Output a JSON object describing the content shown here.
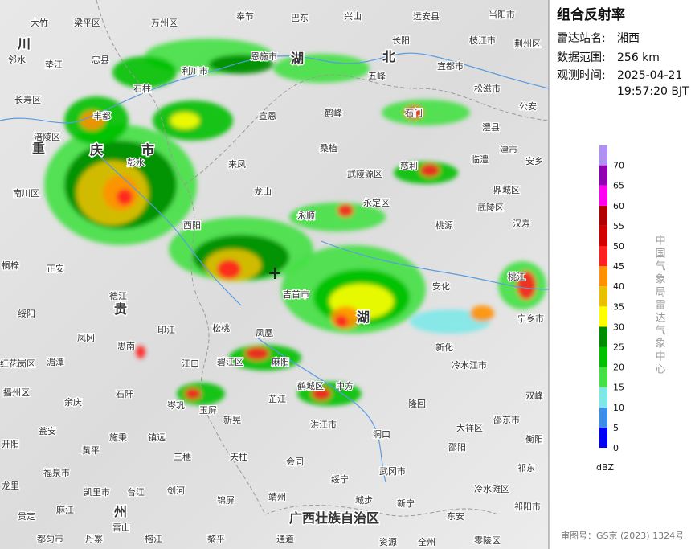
{
  "panel": {
    "title": "组合反射率",
    "station_label": "雷达站名:",
    "station": "湘西",
    "range_label": "数据范围:",
    "range": "256 km",
    "time_label": "观测时间:",
    "date": "2025-04-21",
    "time": "19:57:20 BJT"
  },
  "legend": {
    "ticks": [
      0,
      5,
      10,
      15,
      20,
      25,
      30,
      35,
      40,
      45,
      50,
      55,
      60,
      65,
      70
    ],
    "colors": [
      "#0000f6",
      "#3c8fe8",
      "#7ee8e8",
      "#44e044",
      "#00c000",
      "#008c00",
      "#ffff00",
      "#e8c000",
      "#ff9000",
      "#ff2020",
      "#d00000",
      "#b00000",
      "#ff00f0",
      "#9000b0",
      "#b090f0"
    ],
    "unit": "dBZ"
  },
  "agency": "中国气象局雷达气象中心",
  "approval": "审图号：GS京 (2023) 1324号",
  "places": [
    "大竹",
    "梁平区",
    "万州区",
    "奉节",
    "巴东",
    "兴山",
    "远安县",
    "当阳市",
    "川",
    "邻水",
    "垫江",
    "忠县",
    "石柱",
    "利川市",
    "恩施市",
    "湖",
    "五峰",
    "北",
    "长阳",
    "枝江市",
    "荆州区",
    "宜都市",
    "松滋市",
    "长寿区",
    "丰都",
    "宣恩",
    "鹤峰",
    "石门",
    "澧县",
    "公安",
    "涪陵区",
    "重",
    "庆",
    "市",
    "彭水",
    "来凤",
    "桑植",
    "津市",
    "安乡",
    "南川区",
    "龙山",
    "武陵源区",
    "慈利",
    "临澧",
    "鼎城区",
    "武陵区",
    "汉寿",
    "酉阳",
    "永定区",
    "桃源",
    "桐梓",
    "正安",
    "永顺",
    "吉首市",
    "安化",
    "桃江",
    "德江",
    "贵",
    "湖",
    "宁乡市",
    "绥阳",
    "印江",
    "松桃",
    "凤凰",
    "凤冈",
    "思南",
    "新化",
    "冷水江市",
    "湄潭",
    "红花岗区",
    "江口",
    "碧江区",
    "麻阳",
    "播州区",
    "石阡",
    "余庆",
    "芷江",
    "鹤城区",
    "中方",
    "隆回",
    "双峰",
    "岑巩",
    "玉屏",
    "新晃",
    "洪江市",
    "洞口",
    "邵东市",
    "大祥区",
    "瓮安",
    "施秉",
    "镇远",
    "开阳",
    "黄平",
    "三穗",
    "天柱",
    "会同",
    "绥宁",
    "武冈市",
    "邵阳",
    "衡阳",
    "祁东",
    "福泉市",
    "凯里市",
    "台江",
    "剑河",
    "锦屏",
    "靖州",
    "城步",
    "新宁",
    "冷水滩区",
    "东安",
    "祁阳市",
    "龙里",
    "贵定",
    "麻江",
    "州",
    "雷山",
    "广西壮族自治区",
    "都匀市",
    "丹寨",
    "榕江",
    "黎平",
    "通道",
    "资源",
    "全州",
    "零陵区"
  ]
}
